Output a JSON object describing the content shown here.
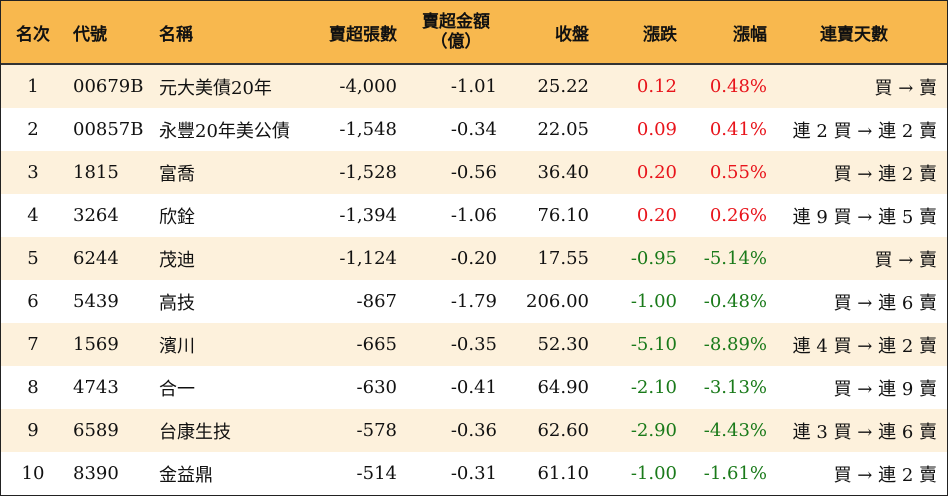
{
  "headers": {
    "rank": "名次",
    "code": "代號",
    "name": "名稱",
    "net_sell_lots": "賣超張數",
    "net_sell_amount_line1": "賣超金額",
    "net_sell_amount_line2": "（億）",
    "close": "收盤",
    "change": "漲跌",
    "change_pct": "漲幅",
    "consecutive_days": "連賣天數"
  },
  "colors": {
    "header_bg": "#f8b84e",
    "odd_row_bg": "#fdf1dc",
    "up": "#e8141b",
    "down": "#1a7a1a"
  },
  "rows": [
    {
      "rank": "1",
      "code": "00679B",
      "name": "元大美債20年",
      "lots": "-4,000",
      "amount": "-1.01",
      "close": "25.22",
      "change": "0.12",
      "pct": "0.48%",
      "days": "買 → 賣",
      "dir": "up"
    },
    {
      "rank": "2",
      "code": "00857B",
      "name": "永豐20年美公債",
      "lots": "-1,548",
      "amount": "-0.34",
      "close": "22.05",
      "change": "0.09",
      "pct": "0.41%",
      "days": "連 2 買 → 連 2 賣",
      "dir": "up"
    },
    {
      "rank": "3",
      "code": "1815",
      "name": "富喬",
      "lots": "-1,528",
      "amount": "-0.56",
      "close": "36.40",
      "change": "0.20",
      "pct": "0.55%",
      "days": "買 → 連 2 賣",
      "dir": "up"
    },
    {
      "rank": "4",
      "code": "3264",
      "name": "欣銓",
      "lots": "-1,394",
      "amount": "-1.06",
      "close": "76.10",
      "change": "0.20",
      "pct": "0.26%",
      "days": "連 9 買 → 連 5 賣",
      "dir": "up"
    },
    {
      "rank": "5",
      "code": "6244",
      "name": "茂迪",
      "lots": "-1,124",
      "amount": "-0.20",
      "close": "17.55",
      "change": "-0.95",
      "pct": "-5.14%",
      "days": "買 → 賣",
      "dir": "down"
    },
    {
      "rank": "6",
      "code": "5439",
      "name": "高技",
      "lots": "-867",
      "amount": "-1.79",
      "close": "206.00",
      "change": "-1.00",
      "pct": "-0.48%",
      "days": "買 → 連 6 賣",
      "dir": "down"
    },
    {
      "rank": "7",
      "code": "1569",
      "name": "濱川",
      "lots": "-665",
      "amount": "-0.35",
      "close": "52.30",
      "change": "-5.10",
      "pct": "-8.89%",
      "days": "連 4 買 → 連 2 賣",
      "dir": "down"
    },
    {
      "rank": "8",
      "code": "4743",
      "name": "合一",
      "lots": "-630",
      "amount": "-0.41",
      "close": "64.90",
      "change": "-2.10",
      "pct": "-3.13%",
      "days": "買 → 連 9 賣",
      "dir": "down"
    },
    {
      "rank": "9",
      "code": "6589",
      "name": "台康生技",
      "lots": "-578",
      "amount": "-0.36",
      "close": "62.60",
      "change": "-2.90",
      "pct": "-4.43%",
      "days": "連 3 買 → 連 6 賣",
      "dir": "down"
    },
    {
      "rank": "10",
      "code": "8390",
      "name": "金益鼎",
      "lots": "-514",
      "amount": "-0.31",
      "close": "61.10",
      "change": "-1.00",
      "pct": "-1.61%",
      "days": "買 → 連 2 賣",
      "dir": "down"
    }
  ]
}
